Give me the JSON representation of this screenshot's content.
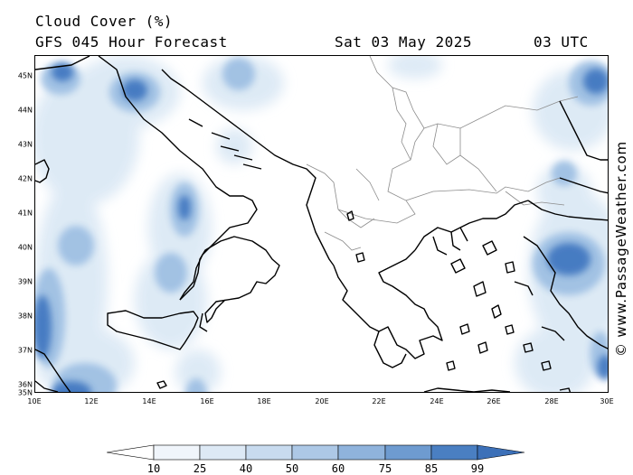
{
  "header": {
    "title": "Cloud Cover (%)",
    "subtitle": "GFS 045 Hour Forecast",
    "date": "Sat 03 May 2025",
    "time": "03 UTC"
  },
  "credit": "© www.PassageWeather.com",
  "map": {
    "lat_labels": [
      "45N",
      "44N",
      "43N",
      "42N",
      "41N",
      "40N",
      "39N",
      "38N",
      "37N",
      "36N",
      "35N"
    ],
    "lon_labels": [
      "10E",
      "12E",
      "14E",
      "16E",
      "18E",
      "20E",
      "22E",
      "24E",
      "26E",
      "28E",
      "30E"
    ],
    "colors": {
      "land_outline": "#000000",
      "border": "#8c8c8c",
      "cloud_light": "#dce9f5",
      "cloud_mid": "#9fc0e3",
      "cloud_dark": "#3e74bf"
    }
  },
  "legend": {
    "labels": [
      "10",
      "25",
      "40",
      "50",
      "60",
      "75",
      "85",
      "99"
    ],
    "colors": [
      "#ffffff",
      "#f0f5fb",
      "#dde9f5",
      "#c8dbef",
      "#adc8e6",
      "#8fb3dc",
      "#6e9bd0",
      "#4a7fc2",
      "#3c70b8"
    ]
  }
}
